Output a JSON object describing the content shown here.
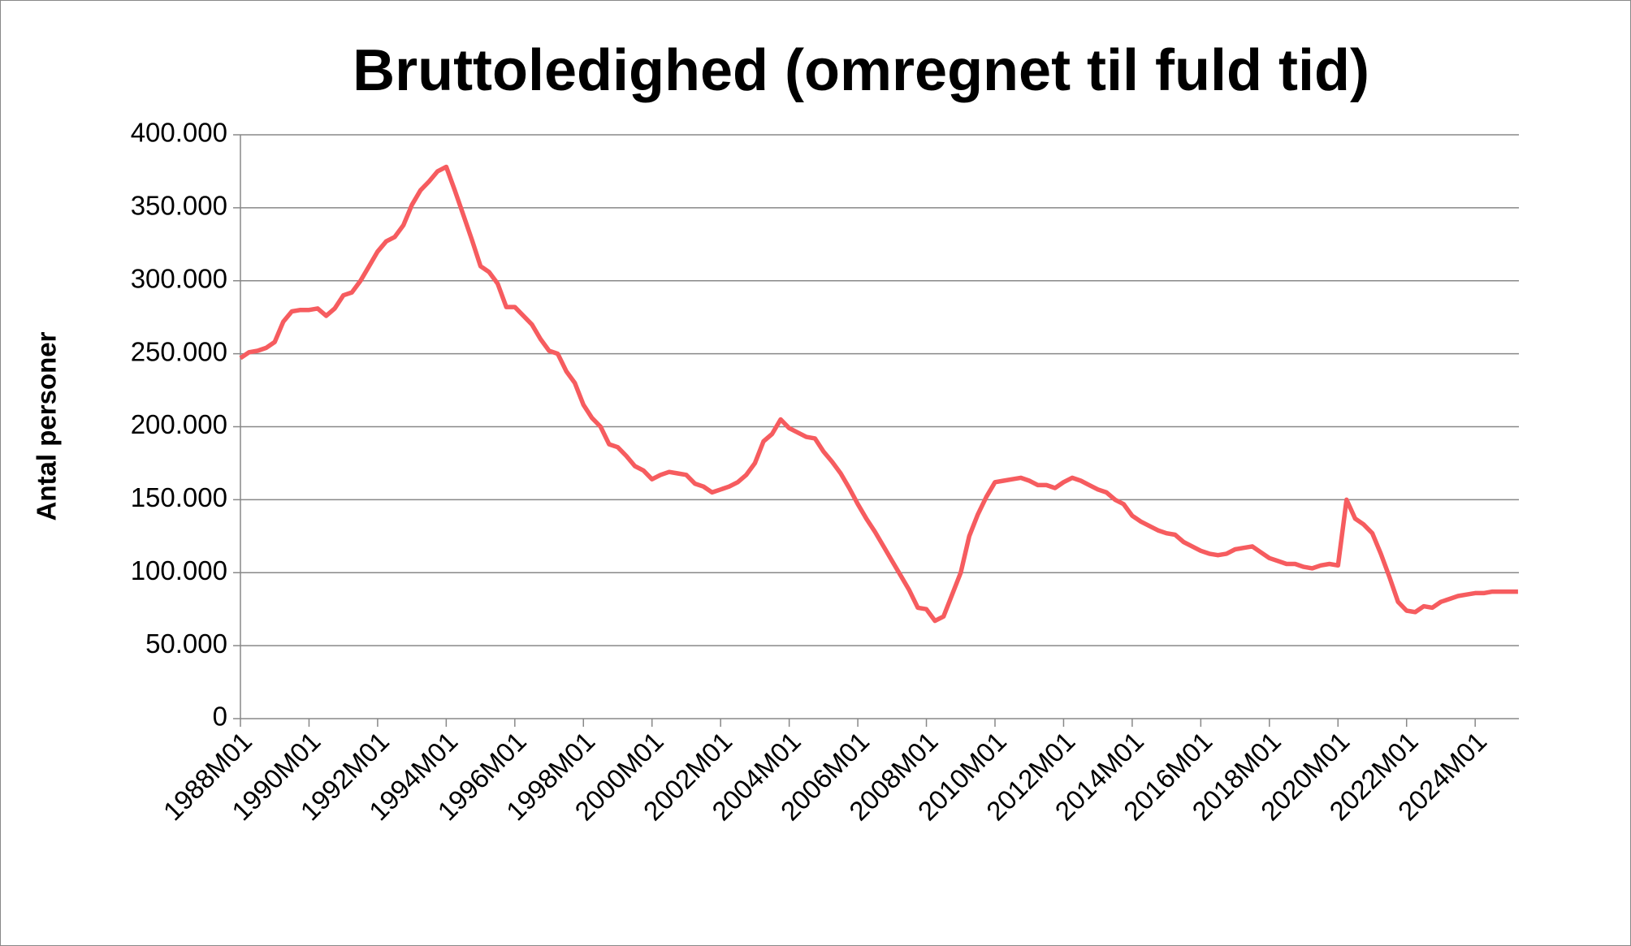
{
  "chart_data": {
    "type": "line",
    "title": "Bruttoledighed (omregnet til fuld tid)",
    "y_label": "Antal personer",
    "categories": [
      "1988M01",
      null,
      null,
      null,
      null,
      null,
      null,
      null,
      "1990M01",
      null,
      null,
      null,
      null,
      null,
      null,
      null,
      "1992M01",
      null,
      null,
      null,
      null,
      null,
      null,
      null,
      "1994M01",
      null,
      null,
      null,
      null,
      null,
      null,
      null,
      "1996M01",
      null,
      null,
      null,
      null,
      null,
      null,
      null,
      "1998M01",
      null,
      null,
      null,
      null,
      null,
      null,
      null,
      "2000M01",
      null,
      null,
      null,
      null,
      null,
      null,
      null,
      "2002M01",
      null,
      null,
      null,
      null,
      null,
      null,
      null,
      "2004M01",
      null,
      null,
      null,
      null,
      null,
      null,
      null,
      "2006M01",
      null,
      null,
      null,
      null,
      null,
      null,
      null,
      "2008M01",
      null,
      null,
      null,
      null,
      null,
      null,
      null,
      "2010M01",
      null,
      null,
      null,
      null,
      null,
      null,
      null,
      "2012M01",
      null,
      null,
      null,
      null,
      null,
      null,
      null,
      "2014M01",
      null,
      null,
      null,
      null,
      null,
      null,
      null,
      "2016M01",
      null,
      null,
      null,
      null,
      null,
      null,
      null,
      "2018M01",
      null,
      null,
      null,
      null,
      null,
      null,
      null,
      "2020M01",
      null,
      null,
      null,
      null,
      null,
      null,
      null,
      "2022M01",
      null,
      null,
      null,
      null,
      null,
      null,
      null,
      "2024M01",
      null,
      null,
      null,
      null,
      null
    ],
    "series": [
      {
        "name": "Bruttoledighed",
        "color": "#f65c5f",
        "values": [
          247000,
          251000,
          252000,
          254000,
          258000,
          272000,
          279000,
          280000,
          280000,
          281000,
          276000,
          281000,
          290000,
          292000,
          300000,
          310000,
          320000,
          327000,
          330000,
          338000,
          352000,
          362000,
          368000,
          375000,
          378000,
          362000,
          345000,
          328000,
          310000,
          306000,
          298000,
          282000,
          282000,
          276000,
          270000,
          260000,
          252000,
          250000,
          238000,
          230000,
          215000,
          206000,
          200000,
          188000,
          186000,
          180000,
          173000,
          170000,
          164000,
          167000,
          169000,
          168000,
          167000,
          161000,
          159000,
          155000,
          157000,
          159000,
          162000,
          167000,
          175000,
          190000,
          195000,
          205000,
          199000,
          196000,
          193000,
          192000,
          183000,
          176000,
          168000,
          158000,
          147000,
          137000,
          128000,
          118000,
          108000,
          98000,
          88000,
          76000,
          75000,
          67000,
          70000,
          85000,
          100000,
          125000,
          140000,
          152000,
          162000,
          163000,
          164000,
          165000,
          163000,
          160000,
          160000,
          158000,
          162000,
          165000,
          163000,
          160000,
          157000,
          155000,
          150000,
          147000,
          139000,
          135000,
          132000,
          129000,
          127000,
          126000,
          121000,
          118000,
          115000,
          113000,
          112000,
          113000,
          116000,
          117000,
          118000,
          114000,
          110000,
          108000,
          106000,
          106000,
          104000,
          103000,
          105000,
          106000,
          105000,
          150000,
          137000,
          133000,
          127000,
          113000,
          97000,
          80000,
          74000,
          73000,
          77000,
          76000,
          80000,
          82000,
          84000,
          85000,
          86000,
          86000,
          87000,
          87000,
          87000,
          87000
        ]
      }
    ],
    "ylim": [
      0,
      400000
    ],
    "yticks": [
      0,
      {
        "value": 50000,
        "label": "50.000"
      },
      {
        "value": 100000,
        "label": "100.000"
      },
      {
        "value": 150000,
        "label": "150.000"
      },
      {
        "value": 200000,
        "label": "200.000"
      },
      {
        "value": 250000,
        "label": "250.000"
      },
      {
        "value": 300000,
        "label": "300.000"
      },
      {
        "value": 350000,
        "label": "350.000"
      },
      {
        "value": 400000,
        "label": "400.000"
      }
    ],
    "grid": true
  }
}
